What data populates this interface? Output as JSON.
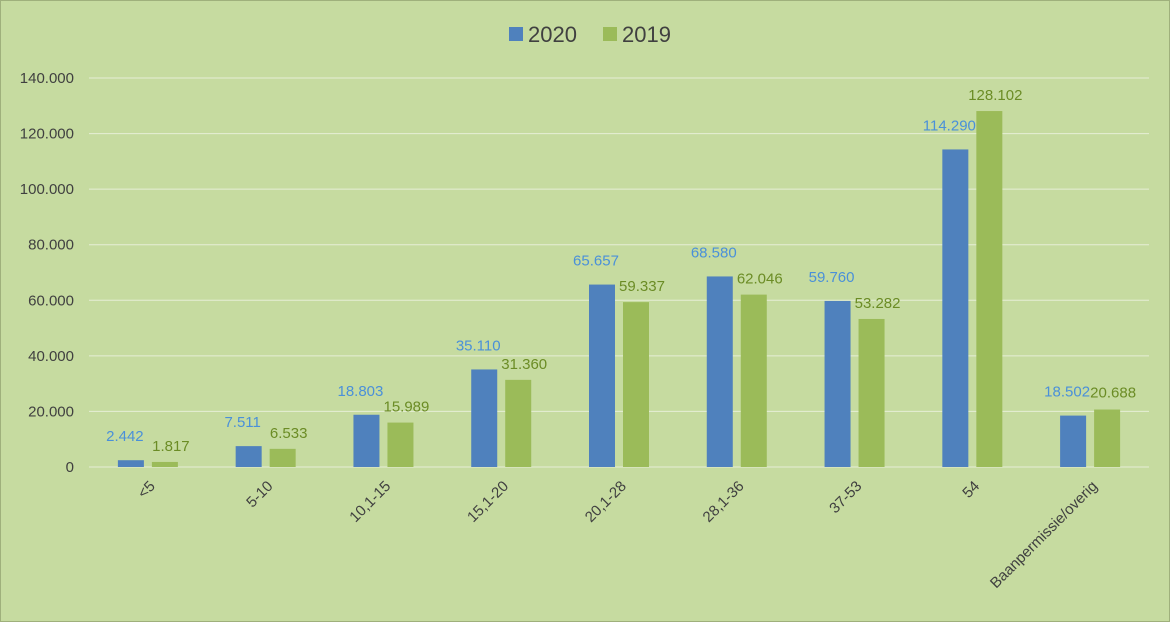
{
  "chart_data": {
    "type": "bar",
    "title": "",
    "xlabel": "",
    "ylabel": "",
    "categories": [
      "<5",
      "5-10",
      "10,1-15",
      "15,1-20",
      "20,1-28",
      "28,1-36",
      "37-53",
      "54",
      "Baanpermissie/overig"
    ],
    "series": [
      {
        "name": "2020",
        "color": "#4f81bd",
        "label_color": "#4a90d9",
        "values": [
          2442,
          7511,
          18803,
          35110,
          65657,
          68580,
          59760,
          114290,
          18502
        ],
        "labels": [
          "2.442",
          "7.511",
          "18.803",
          "35.110",
          "65.657",
          "68.580",
          "59.760",
          "114.290",
          "18.502"
        ]
      },
      {
        "name": "2019",
        "color": "#9bbb59",
        "label_color": "#6b8c25",
        "values": [
          1817,
          6533,
          15989,
          31360,
          59337,
          62046,
          53282,
          128102,
          20688
        ],
        "labels": [
          "1.817",
          "6.533",
          "15.989",
          "31.360",
          "59.337",
          "62.046",
          "53.282",
          "128.102",
          "20.688"
        ]
      }
    ],
    "ylim": [
      0,
      140000
    ],
    "yticks": [
      0,
      20000,
      40000,
      60000,
      80000,
      100000,
      120000,
      140000
    ],
    "ytick_labels": [
      "0",
      "20.000",
      "40.000",
      "60.000",
      "80.000",
      "100.000",
      "120.000",
      "140.000"
    ],
    "grid": true,
    "legend_position": "top-center",
    "background_color": "#c6dba0",
    "gridline_color": "#e6eed6"
  }
}
